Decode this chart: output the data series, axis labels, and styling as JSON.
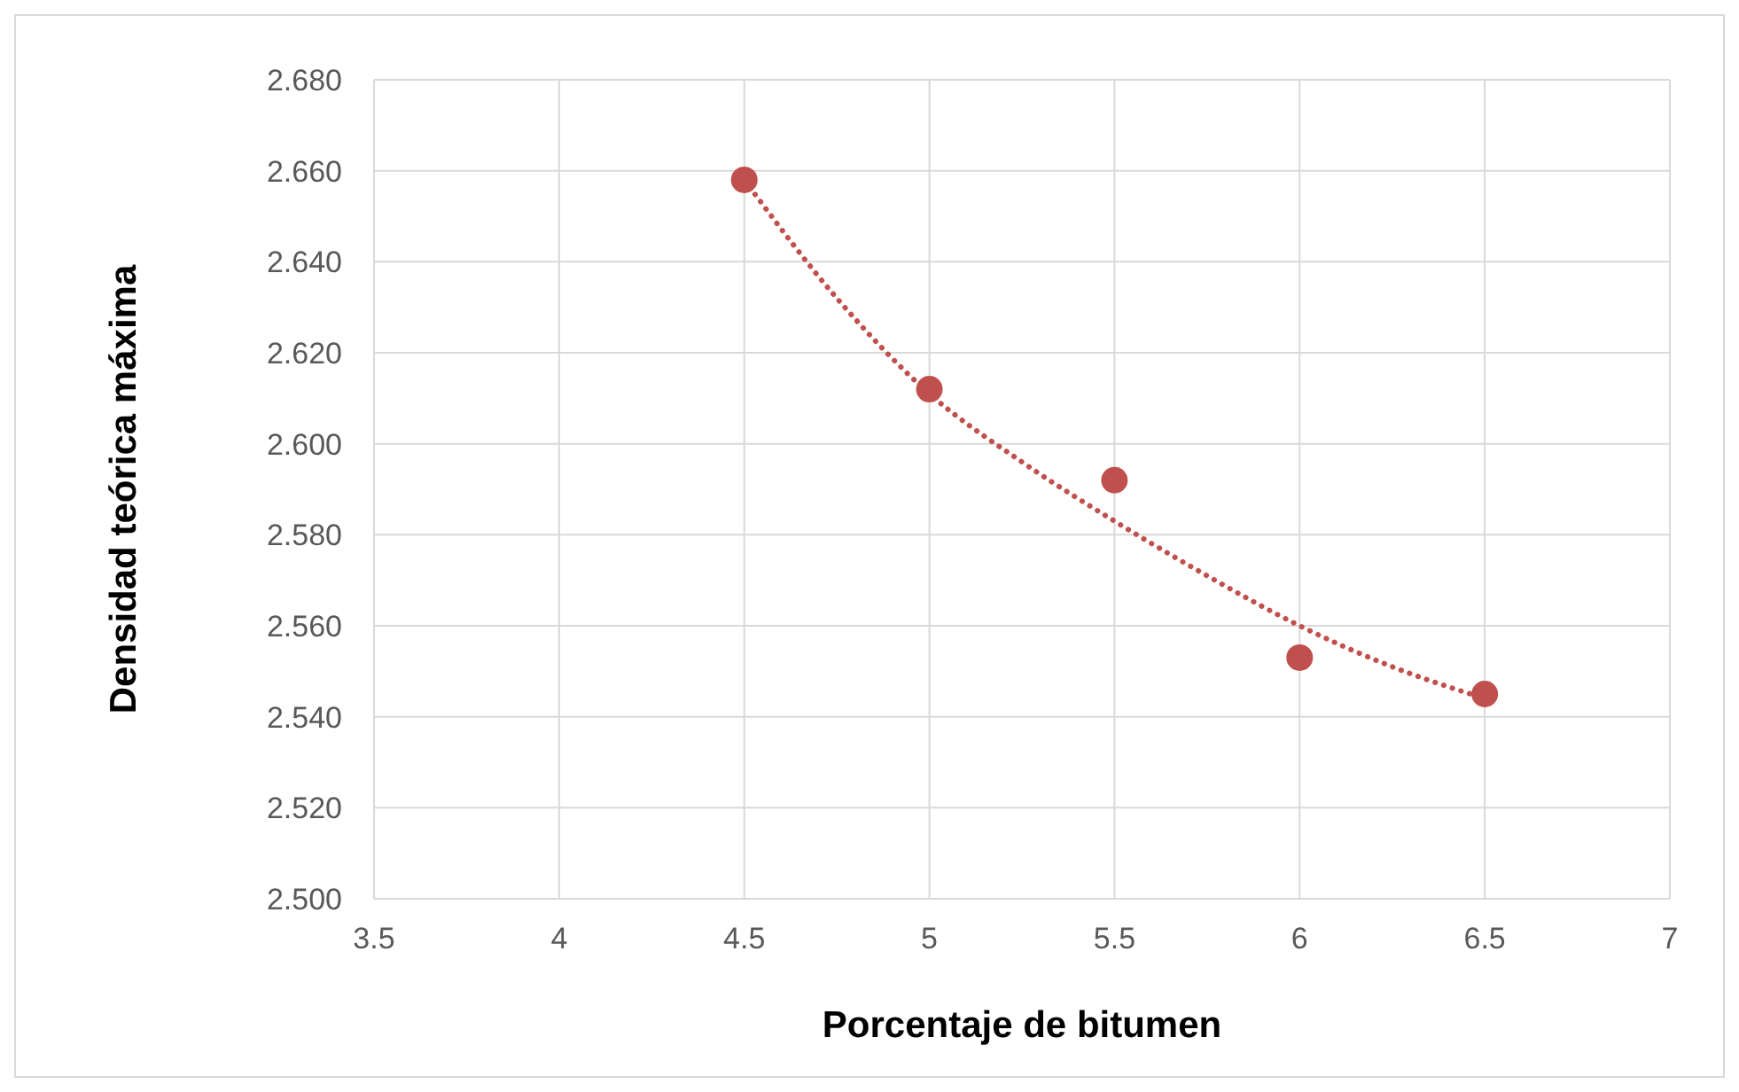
{
  "chart_data": {
    "type": "scatter",
    "xlabel": "Porcentaje de bitumen",
    "ylabel": "Densidad teórica máxima",
    "xlim": [
      3.5,
      7
    ],
    "xticks": [
      3.5,
      4,
      4.5,
      5,
      5.5,
      6,
      6.5,
      7
    ],
    "ylim": [
      2.5,
      2.68
    ],
    "yticks": [
      {
        "value": 2.5,
        "label": "2.500"
      },
      {
        "value": 2.52,
        "label": "2.520"
      },
      {
        "value": 2.54,
        "label": "2.540"
      },
      {
        "value": 2.56,
        "label": "2.560"
      },
      {
        "value": 2.58,
        "label": "2.580"
      },
      {
        "value": 2.6,
        "label": "2.600"
      },
      {
        "value": 2.62,
        "label": "2.620"
      },
      {
        "value": 2.64,
        "label": "2.640"
      },
      {
        "value": 2.66,
        "label": "2.660"
      },
      {
        "value": 2.68,
        "label": "2.680"
      }
    ],
    "grid": true,
    "legend": false,
    "series": [
      {
        "type": "scatter",
        "color": "#c0504d",
        "marker": "circle",
        "x": [
          4.5,
          5,
          5.5,
          6,
          6.5
        ],
        "values": [
          2.658,
          2.612,
          2.592,
          2.553,
          2.545
        ]
      },
      {
        "type": "line",
        "color": "#c0504d",
        "marker": "none",
        "line_style": "dotted",
        "x": [
          4.5,
          4.75,
          5,
          5.25,
          5.5,
          5.75,
          6,
          6.25,
          6.5
        ],
        "values": [
          2.658,
          2.632,
          2.611,
          2.596,
          2.583,
          2.571,
          2.56,
          2.551,
          2.544
        ]
      }
    ]
  }
}
